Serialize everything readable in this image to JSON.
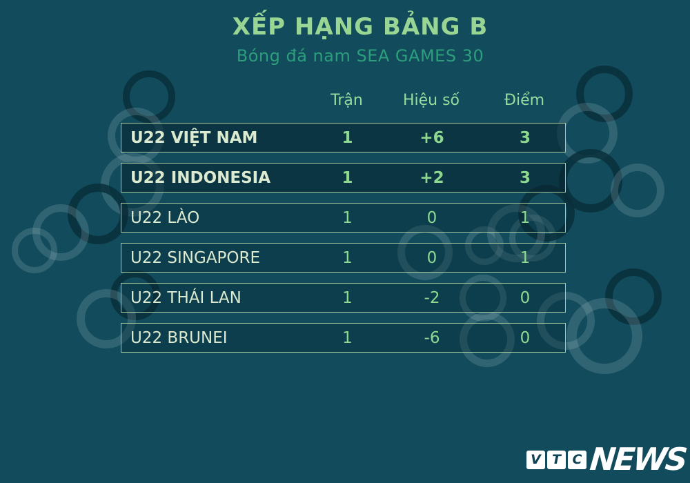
{
  "header": {
    "title": "XẾP HẠNG BẢNG B",
    "subtitle": "Bóng đá nam SEA GAMES 30"
  },
  "table": {
    "columns": {
      "played": "Trận",
      "diff": "Hiệu số",
      "points": "Điểm"
    },
    "rows": [
      {
        "team": "U22 VIỆT NAM",
        "played": "1",
        "diff": "+6",
        "points": "3"
      },
      {
        "team": "U22 INDONESIA",
        "played": "1",
        "diff": "+2",
        "points": "3"
      },
      {
        "team": "U22 LÀO",
        "played": "1",
        "diff": "0",
        "points": "1"
      },
      {
        "team": "U22 SINGAPORE",
        "played": "1",
        "diff": "0",
        "points": "1"
      },
      {
        "team": "U22 THÁI LAN",
        "played": "1",
        "diff": "-2",
        "points": "0"
      },
      {
        "team": "U22 BRUNEI",
        "played": "1",
        "diff": "-6",
        "points": "0"
      }
    ]
  },
  "logo": {
    "box_letters": [
      "V",
      "T",
      "C"
    ],
    "wordmark": "NEWS"
  },
  "colors": {
    "background": "#114b5c",
    "title_green": "#9ad693",
    "subtitle_green": "#2d9e7c",
    "team_text": "#dcead0",
    "number_green": "#8ed98f",
    "row_border": "#b2d5a0"
  },
  "chart_data": {
    "type": "table",
    "title": "XẾP HẠNG BẢNG B",
    "subtitle": "Bóng đá nam SEA GAMES 30",
    "columns": [
      "",
      "Trận",
      "Hiệu số",
      "Điểm"
    ],
    "rows": [
      [
        "U22 VIỆT NAM",
        1,
        "+6",
        3
      ],
      [
        "U22 INDONESIA",
        1,
        "+2",
        3
      ],
      [
        "U22 LÀO",
        1,
        "0",
        1
      ],
      [
        "U22 SINGAPORE",
        1,
        "0",
        1
      ],
      [
        "U22 THÁI LAN",
        1,
        "-2",
        0
      ],
      [
        "U22 BRUNEI",
        1,
        "-6",
        0
      ]
    ]
  }
}
